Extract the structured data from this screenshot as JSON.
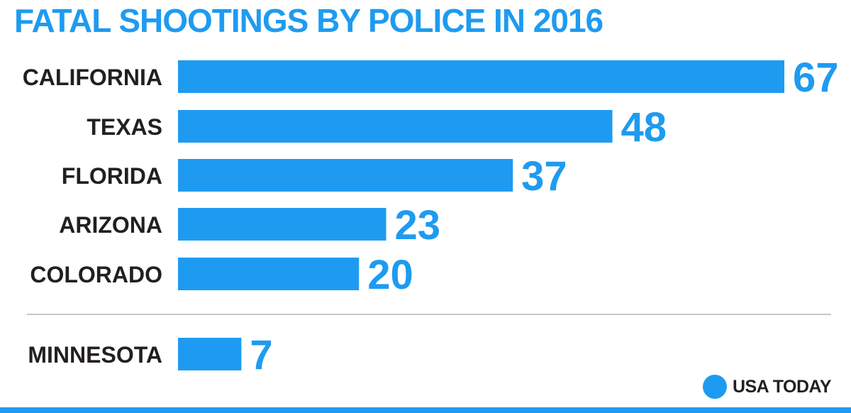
{
  "chart_data": {
    "type": "bar",
    "orientation": "horizontal",
    "title": "FATAL SHOOTINGS BY POLICE IN 2016",
    "categories": [
      "CALIFORNIA",
      "TEXAS",
      "FLORIDA",
      "ARIZONA",
      "COLORADO"
    ],
    "values": [
      67,
      48,
      37,
      23,
      20
    ],
    "highlight": {
      "category": "MINNESOTA",
      "value": 7
    },
    "xlim": [
      0,
      67
    ],
    "grid": false,
    "legend": "none",
    "bar_color": "#1e9bf0"
  },
  "branding": {
    "logo_text": "USA TODAY"
  },
  "colors": {
    "accent": "#1e9bf0",
    "text": "#231f20",
    "divider": "#b3b3b3"
  }
}
